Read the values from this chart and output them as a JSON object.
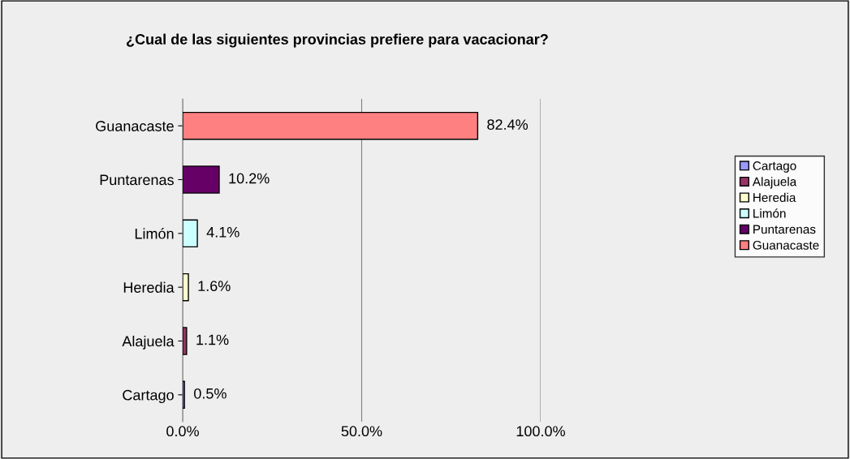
{
  "chart_data": {
    "type": "bar",
    "orientation": "horizontal",
    "title": "¿Cual de las siguientes provincias prefiere para vacacionar?",
    "categories": [
      "Guanacaste",
      "Puntarenas",
      "Limón",
      "Heredia",
      "Alajuela",
      "Cartago"
    ],
    "series": [
      {
        "name": "Cartago",
        "color": "#9999ff",
        "values": [
          null,
          null,
          null,
          null,
          null,
          0.5
        ],
        "value_labels": [
          null,
          null,
          null,
          null,
          null,
          "0.5%"
        ]
      },
      {
        "name": "Alajuela",
        "color": "#993366",
        "values": [
          null,
          null,
          null,
          null,
          1.1,
          null
        ],
        "value_labels": [
          null,
          null,
          null,
          null,
          "1.1%",
          null
        ]
      },
      {
        "name": "Heredia",
        "color": "#ffffcc",
        "values": [
          null,
          null,
          null,
          1.6,
          null,
          null
        ],
        "value_labels": [
          null,
          null,
          null,
          "1.6%",
          null,
          null
        ]
      },
      {
        "name": "Limón",
        "color": "#ccffff",
        "values": [
          null,
          null,
          4.1,
          null,
          null,
          null
        ],
        "value_labels": [
          null,
          null,
          "4.1%",
          null,
          null,
          null
        ]
      },
      {
        "name": "Puntarenas",
        "color": "#660066",
        "values": [
          null,
          10.2,
          null,
          null,
          null,
          null
        ],
        "value_labels": [
          null,
          "10.2%",
          null,
          null,
          null,
          null
        ]
      },
      {
        "name": "Guanacaste",
        "color": "#ff8080",
        "values": [
          82.4,
          null,
          null,
          null,
          null,
          null
        ],
        "value_labels": [
          "82.4%",
          null,
          null,
          null,
          null,
          null
        ]
      }
    ],
    "xlim": [
      0,
      100
    ],
    "xticks": [
      {
        "value": 0,
        "label": "0.0%"
      },
      {
        "value": 50,
        "label": "50.0%"
      },
      {
        "value": 100,
        "label": "100.0%"
      }
    ],
    "grid": "x",
    "legend": "right"
  }
}
